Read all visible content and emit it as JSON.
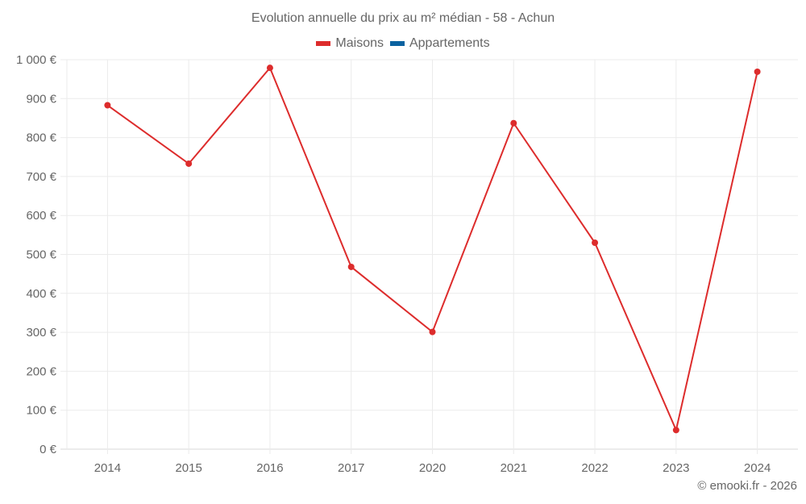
{
  "header": {
    "title": "Evolution annuelle du prix au m² médian - 58 - Achun"
  },
  "legend": [
    {
      "label": "Maisons",
      "color": "#dd2c2c"
    },
    {
      "label": "Appartements",
      "color": "#0b62a0"
    }
  ],
  "y_axis": {
    "ticks": [
      "0 €",
      "100 €",
      "200 €",
      "300 €",
      "400 €",
      "500 €",
      "600 €",
      "700 €",
      "800 €",
      "900 €",
      "1 000 €"
    ]
  },
  "x_axis": {
    "ticks": [
      "2014",
      "2015",
      "2016",
      "2017",
      "2020",
      "2021",
      "2022",
      "2023",
      "2024"
    ]
  },
  "footer": {
    "credit": "© emooki.fr - 2026"
  },
  "chart_data": {
    "type": "line",
    "title": "Evolution annuelle du prix au m² médian - 58 - Achun",
    "xlabel": "",
    "ylabel": "",
    "categories": [
      "2014",
      "2015",
      "2016",
      "2017",
      "2020",
      "2021",
      "2022",
      "2023",
      "2024"
    ],
    "series": [
      {
        "name": "Maisons",
        "color": "#dd2c2c",
        "values": [
          883,
          733,
          979,
          468,
          301,
          837,
          530,
          49,
          969
        ]
      },
      {
        "name": "Appartements",
        "color": "#0b62a0",
        "values": []
      }
    ],
    "ylim": [
      0,
      1000
    ],
    "y_tick_step": 100,
    "grid": true,
    "legend_position": "top"
  }
}
